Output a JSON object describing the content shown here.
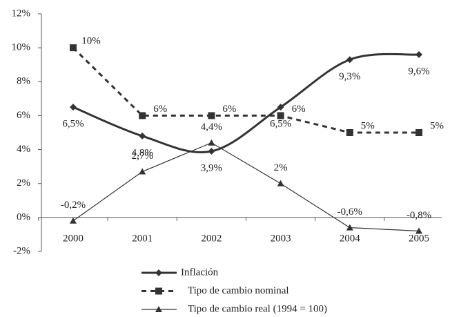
{
  "chart_data": {
    "type": "line",
    "categories": [
      "2000",
      "2001",
      "2002",
      "2003",
      "2004",
      "2005"
    ],
    "series": [
      {
        "name": "Inflación",
        "color": "#333333",
        "values": [
          6.5,
          4.8,
          3.9,
          6.5,
          9.3,
          9.6
        ],
        "value_labels": [
          "6,5%",
          "4,8%",
          "3,9%",
          "6,5%",
          "9,3%",
          "9,6%"
        ]
      },
      {
        "name": "Tipo de cambio nominal",
        "color": "#333333",
        "values": [
          10,
          6,
          6,
          6,
          5,
          5
        ],
        "value_labels": [
          "10%",
          "6%",
          "6%",
          "6%",
          "5%",
          "5%"
        ]
      },
      {
        "name": "Tipo de cambio real (1994 = 100)",
        "color": "#333333",
        "values": [
          -0.2,
          2.7,
          4.4,
          2,
          -0.6,
          -0.8
        ],
        "value_labels": [
          "-0,2%",
          "2,7%",
          "4,4%",
          "2%",
          "-0,6%",
          "-0,8%"
        ]
      }
    ],
    "ylim": [
      -2,
      12
    ],
    "yticks": [
      {
        "value": -2,
        "label": "-2%"
      },
      {
        "value": 0,
        "label": "0%"
      },
      {
        "value": 2,
        "label": "2%"
      },
      {
        "value": 4,
        "label": "4%"
      },
      {
        "value": 6,
        "label": "6%"
      },
      {
        "value": 8,
        "label": "8%"
      },
      {
        "value": 10,
        "label": "10%"
      },
      {
        "value": 12,
        "label": "12%"
      }
    ],
    "grid": false
  }
}
